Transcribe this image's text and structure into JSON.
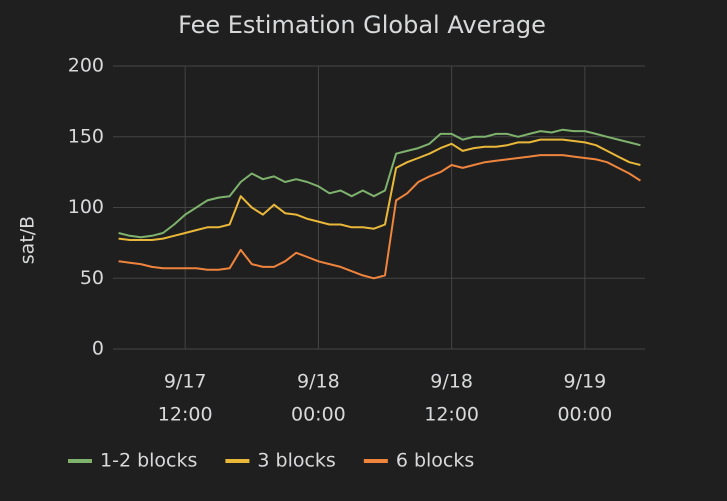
{
  "chart_data": {
    "type": "line",
    "title": "Fee Estimation Global Average",
    "y_label": "sat/B",
    "x": [
      "9/17 06:00",
      "9/17 07:00",
      "9/17 08:00",
      "9/17 09:00",
      "9/17 10:00",
      "9/17 11:00",
      "9/17 12:00",
      "9/17 13:00",
      "9/17 14:00",
      "9/17 15:00",
      "9/17 16:00",
      "9/17 17:00",
      "9/17 18:00",
      "9/17 19:00",
      "9/17 20:00",
      "9/17 21:00",
      "9/17 22:00",
      "9/17 23:00",
      "9/18 00:00",
      "9/18 01:00",
      "9/18 02:00",
      "9/18 03:00",
      "9/18 04:00",
      "9/18 05:00",
      "9/18 06:00",
      "9/18 07:00",
      "9/18 08:00",
      "9/18 09:00",
      "9/18 10:00",
      "9/18 11:00",
      "9/18 12:00",
      "9/18 13:00",
      "9/18 14:00",
      "9/18 15:00",
      "9/18 16:00",
      "9/18 17:00",
      "9/18 18:00",
      "9/18 19:00",
      "9/18 20:00",
      "9/18 21:00",
      "9/18 22:00",
      "9/18 23:00",
      "9/19 00:00",
      "9/19 01:00",
      "9/19 02:00",
      "9/19 03:00",
      "9/19 04:00",
      "9/19 05:00"
    ],
    "series": [
      {
        "name": "1-2 blocks",
        "color": "#7eb26d",
        "values": [
          82,
          80,
          79,
          80,
          82,
          88,
          95,
          100,
          105,
          107,
          108,
          118,
          124,
          120,
          122,
          118,
          120,
          118,
          115,
          110,
          112,
          108,
          112,
          108,
          112,
          138,
          140,
          142,
          145,
          152,
          152,
          148,
          150,
          150,
          152,
          152,
          150,
          152,
          154,
          153,
          155,
          154,
          154,
          152,
          150,
          148,
          146,
          144
        ]
      },
      {
        "name": "3 blocks",
        "color": "#eab839",
        "values": [
          78,
          77,
          77,
          77,
          78,
          80,
          82,
          84,
          86,
          86,
          88,
          108,
          100,
          95,
          102,
          96,
          95,
          92,
          90,
          88,
          88,
          86,
          86,
          85,
          88,
          128,
          132,
          135,
          138,
          142,
          145,
          140,
          142,
          143,
          143,
          144,
          146,
          146,
          148,
          148,
          148,
          147,
          146,
          144,
          140,
          136,
          132,
          130
        ]
      },
      {
        "name": "6 blocks",
        "color": "#ef843c",
        "values": [
          62,
          61,
          60,
          58,
          57,
          57,
          57,
          57,
          56,
          56,
          57,
          70,
          60,
          58,
          58,
          62,
          68,
          65,
          62,
          60,
          58,
          55,
          52,
          50,
          52,
          105,
          110,
          118,
          122,
          125,
          130,
          128,
          130,
          132,
          133,
          134,
          135,
          136,
          137,
          137,
          137,
          136,
          135,
          134,
          132,
          128,
          124,
          119
        ]
      }
    ],
    "xlim": [
      "9/17 05:30",
      "9/19 05:25"
    ],
    "xticks": [
      {
        "value": "9/17 12:00",
        "label": [
          "9/17",
          "12:00"
        ]
      },
      {
        "value": "9/18 00:00",
        "label": [
          "9/18",
          "00:00"
        ]
      },
      {
        "value": "9/18 12:00",
        "label": [
          "9/18",
          "12:00"
        ]
      },
      {
        "value": "9/19 00:00",
        "label": [
          "9/19",
          "00:00"
        ]
      }
    ],
    "ylim": [
      0,
      200
    ],
    "yticks": [
      0,
      50,
      100,
      150,
      200
    ],
    "grid": true,
    "legend": "bottom"
  }
}
